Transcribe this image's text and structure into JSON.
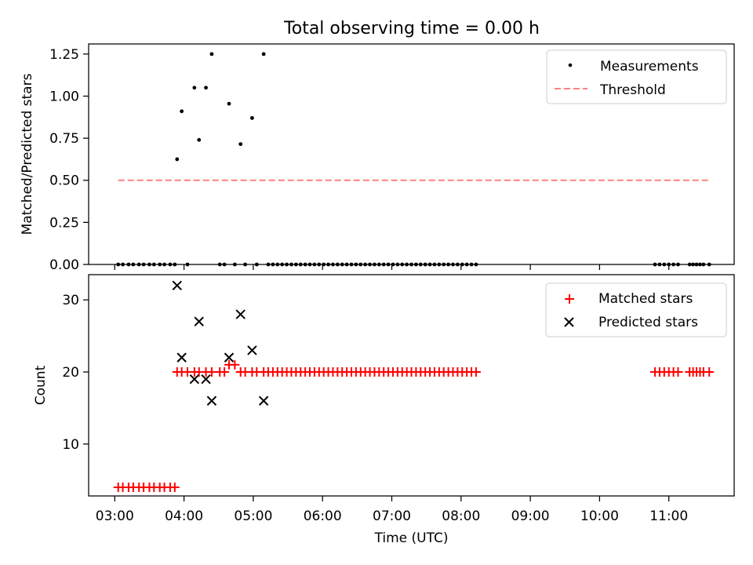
{
  "figure": {
    "title": "Total observing time = 0.00 h"
  },
  "chart_data": [
    {
      "type": "scatter",
      "ylabel": "Matched/Predicted stars",
      "xlim": [
        "02:50",
        "11:55"
      ],
      "ylim": [
        0,
        1.31
      ],
      "yticks": [
        "0.00",
        "0.25",
        "0.50",
        "0.75",
        "1.00",
        "1.25"
      ],
      "grid": false,
      "legend_position": "upper right",
      "legend": [
        "Measurements",
        "Threshold"
      ],
      "series": [
        {
          "name": "Measurements",
          "marker": "dot",
          "color": "#000000",
          "points": [
            [
              "03:03",
              0
            ],
            [
              "03:07",
              0
            ],
            [
              "03:12",
              0
            ],
            [
              "03:16",
              0
            ],
            [
              "03:21",
              0
            ],
            [
              "03:25",
              0
            ],
            [
              "03:30",
              0
            ],
            [
              "03:34",
              0
            ],
            [
              "03:39",
              0
            ],
            [
              "03:43",
              0
            ],
            [
              "03:48",
              0
            ],
            [
              "03:52",
              0
            ],
            [
              "03:54",
              0.625
            ],
            [
              "03:58",
              0.91
            ],
            [
              "04:03",
              0
            ],
            [
              "04:09",
              1.05
            ],
            [
              "04:13",
              0.74
            ],
            [
              "04:19",
              1.05
            ],
            [
              "04:24",
              1.25
            ],
            [
              "04:31",
              0
            ],
            [
              "04:35",
              0
            ],
            [
              "04:39",
              0.955
            ],
            [
              "04:44",
              0
            ],
            [
              "04:49",
              0.715
            ],
            [
              "04:53",
              0
            ],
            [
              "04:59",
              0.87
            ],
            [
              "05:03",
              0
            ],
            [
              "05:09",
              1.25
            ],
            [
              "05:13",
              0
            ],
            [
              "05:17",
              0
            ],
            [
              "05:21",
              0
            ],
            [
              "05:25",
              0
            ],
            [
              "05:29",
              0
            ],
            [
              "05:33",
              0
            ],
            [
              "05:37",
              0
            ],
            [
              "05:41",
              0
            ],
            [
              "05:45",
              0
            ],
            [
              "05:49",
              0
            ],
            [
              "05:53",
              0
            ],
            [
              "05:57",
              0
            ],
            [
              "06:01",
              0
            ],
            [
              "06:05",
              0
            ],
            [
              "06:09",
              0
            ],
            [
              "06:13",
              0
            ],
            [
              "06:17",
              0
            ],
            [
              "06:21",
              0
            ],
            [
              "06:25",
              0
            ],
            [
              "06:29",
              0
            ],
            [
              "06:33",
              0
            ],
            [
              "06:37",
              0
            ],
            [
              "06:41",
              0
            ],
            [
              "06:45",
              0
            ],
            [
              "06:49",
              0
            ],
            [
              "06:53",
              0
            ],
            [
              "06:57",
              0
            ],
            [
              "07:01",
              0
            ],
            [
              "07:05",
              0
            ],
            [
              "07:09",
              0
            ],
            [
              "07:13",
              0
            ],
            [
              "07:17",
              0
            ],
            [
              "07:21",
              0
            ],
            [
              "07:25",
              0
            ],
            [
              "07:29",
              0
            ],
            [
              "07:33",
              0
            ],
            [
              "07:37",
              0
            ],
            [
              "07:41",
              0
            ],
            [
              "07:45",
              0
            ],
            [
              "07:49",
              0
            ],
            [
              "07:53",
              0
            ],
            [
              "07:57",
              0
            ],
            [
              "08:01",
              0
            ],
            [
              "08:05",
              0
            ],
            [
              "08:09",
              0
            ],
            [
              "08:13",
              0
            ],
            [
              "10:48",
              0
            ],
            [
              "10:52",
              0
            ],
            [
              "10:56",
              0
            ],
            [
              "11:00",
              0
            ],
            [
              "11:04",
              0
            ],
            [
              "11:08",
              0
            ],
            [
              "11:18",
              0
            ],
            [
              "11:21",
              0
            ],
            [
              "11:24",
              0
            ],
            [
              "11:27",
              0
            ],
            [
              "11:30",
              0
            ],
            [
              "11:35",
              0
            ]
          ]
        },
        {
          "name": "Threshold",
          "type": "line",
          "style": "dashed",
          "color": "#ff8080",
          "points": [
            [
              "03:03",
              0.5
            ],
            [
              "11:35",
              0.5
            ]
          ]
        }
      ]
    },
    {
      "type": "scatter",
      "xlabel": "Time (UTC)",
      "ylabel": "Count",
      "xlim": [
        "02:50",
        "11:55"
      ],
      "ylim": [
        2.8,
        33.5
      ],
      "yticks": [
        "10",
        "20",
        "30"
      ],
      "xticks": [
        "03:00",
        "04:00",
        "05:00",
        "06:00",
        "07:00",
        "08:00",
        "09:00",
        "10:00",
        "11:00"
      ],
      "grid": false,
      "legend_position": "upper right",
      "legend": [
        "Matched stars",
        "Predicted stars"
      ],
      "series": [
        {
          "name": "Matched stars",
          "marker": "plus",
          "color": "#ff0000",
          "points": [
            [
              "03:03",
              4
            ],
            [
              "03:07",
              4
            ],
            [
              "03:12",
              4
            ],
            [
              "03:16",
              4
            ],
            [
              "03:21",
              4
            ],
            [
              "03:25",
              4
            ],
            [
              "03:30",
              4
            ],
            [
              "03:34",
              4
            ],
            [
              "03:39",
              4
            ],
            [
              "03:43",
              4
            ],
            [
              "03:48",
              4
            ],
            [
              "03:52",
              4
            ],
            [
              "03:54",
              20
            ],
            [
              "03:58",
              20
            ],
            [
              "04:03",
              20
            ],
            [
              "04:09",
              20
            ],
            [
              "04:13",
              20
            ],
            [
              "04:19",
              20
            ],
            [
              "04:24",
              20
            ],
            [
              "04:31",
              20
            ],
            [
              "04:35",
              20
            ],
            [
              "04:39",
              21
            ],
            [
              "04:44",
              21
            ],
            [
              "04:49",
              20
            ],
            [
              "04:53",
              20
            ],
            [
              "04:59",
              20
            ],
            [
              "05:03",
              20
            ],
            [
              "05:09",
              20
            ],
            [
              "05:13",
              20
            ],
            [
              "05:17",
              20
            ],
            [
              "05:21",
              20
            ],
            [
              "05:25",
              20
            ],
            [
              "05:29",
              20
            ],
            [
              "05:33",
              20
            ],
            [
              "05:37",
              20
            ],
            [
              "05:41",
              20
            ],
            [
              "05:45",
              20
            ],
            [
              "05:49",
              20
            ],
            [
              "05:53",
              20
            ],
            [
              "05:57",
              20
            ],
            [
              "06:01",
              20
            ],
            [
              "06:05",
              20
            ],
            [
              "06:09",
              20
            ],
            [
              "06:13",
              20
            ],
            [
              "06:17",
              20
            ],
            [
              "06:21",
              20
            ],
            [
              "06:25",
              20
            ],
            [
              "06:29",
              20
            ],
            [
              "06:33",
              20
            ],
            [
              "06:37",
              20
            ],
            [
              "06:41",
              20
            ],
            [
              "06:45",
              20
            ],
            [
              "06:49",
              20
            ],
            [
              "06:53",
              20
            ],
            [
              "06:57",
              20
            ],
            [
              "07:01",
              20
            ],
            [
              "07:05",
              20
            ],
            [
              "07:09",
              20
            ],
            [
              "07:13",
              20
            ],
            [
              "07:17",
              20
            ],
            [
              "07:21",
              20
            ],
            [
              "07:25",
              20
            ],
            [
              "07:29",
              20
            ],
            [
              "07:33",
              20
            ],
            [
              "07:37",
              20
            ],
            [
              "07:41",
              20
            ],
            [
              "07:45",
              20
            ],
            [
              "07:49",
              20
            ],
            [
              "07:53",
              20
            ],
            [
              "07:57",
              20
            ],
            [
              "08:01",
              20
            ],
            [
              "08:05",
              20
            ],
            [
              "08:09",
              20
            ],
            [
              "08:13",
              20
            ],
            [
              "10:48",
              20
            ],
            [
              "10:52",
              20
            ],
            [
              "10:56",
              20
            ],
            [
              "11:00",
              20
            ],
            [
              "11:04",
              20
            ],
            [
              "11:08",
              20
            ],
            [
              "11:18",
              20
            ],
            [
              "11:21",
              20
            ],
            [
              "11:24",
              20
            ],
            [
              "11:27",
              20
            ],
            [
              "11:30",
              20
            ],
            [
              "11:35",
              20
            ]
          ]
        },
        {
          "name": "Predicted stars",
          "marker": "x",
          "color": "#000000",
          "points": [
            [
              "03:54",
              32
            ],
            [
              "03:58",
              22
            ],
            [
              "04:09",
              19
            ],
            [
              "04:13",
              27
            ],
            [
              "04:19",
              19
            ],
            [
              "04:24",
              16
            ],
            [
              "04:39",
              22
            ],
            [
              "04:49",
              28
            ],
            [
              "04:59",
              23
            ],
            [
              "05:09",
              16
            ]
          ]
        }
      ]
    }
  ]
}
